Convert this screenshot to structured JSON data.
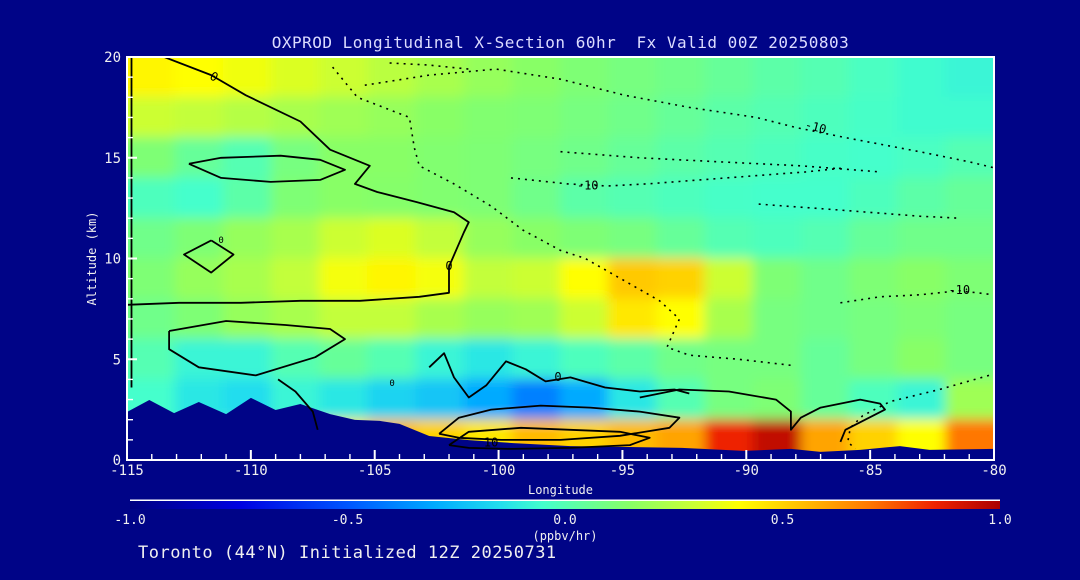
{
  "title": "OXPROD Longitudinal X-Section 60hr  Fx Valid 00Z 20250803",
  "footer": {
    "text": "Toronto (44°N) Initialized 12Z 20250731"
  },
  "colors": {
    "background": "#000487",
    "frame": "#ffffff",
    "tick_text": "#f0f0f0",
    "title_text": "#dcdcff",
    "contour": "#000000",
    "terrain": "#000487"
  },
  "chart_data": {
    "type": "heatmap",
    "title": "OXPROD Longitudinal X-Section 60hr  Fx Valid 00Z 20250803",
    "xlabel": "Longitude",
    "ylabel": "Altitude (km)",
    "xlim": [
      -115,
      -80
    ],
    "ylim": [
      0,
      20
    ],
    "xticks": [
      -115,
      -110,
      -105,
      -100,
      -95,
      -90,
      -85,
      -80
    ],
    "yticks": [
      0,
      5,
      10,
      15,
      20
    ],
    "x_minor_step": 1,
    "y_minor_step": 1,
    "colorbar": {
      "unit_label": "(ppbv/hr)",
      "ticks": [
        -1.0,
        -0.5,
        0.0,
        0.5,
        1.0
      ],
      "min": -1.0,
      "max": 1.0
    },
    "colormap": {
      "levels": [
        -1,
        -0.75,
        -0.5,
        -0.3,
        -0.15,
        -0.05,
        0.05,
        0.15,
        0.3,
        0.4,
        0.55,
        0.7,
        0.85,
        1
      ],
      "colors": [
        "#000080",
        "#0000e0",
        "#0055ff",
        "#00aaff",
        "#22ddee",
        "#44ffcc",
        "#66ff99",
        "#88ff66",
        "#ccff33",
        "#ffff00",
        "#ffbb00",
        "#ff7700",
        "#ee2200",
        "#aa0000"
      ]
    },
    "grid": {
      "lon_min": -115,
      "lon_max": -80,
      "alt_min": 0,
      "alt_max": 20,
      "ncols": 18,
      "nrows": 10,
      "note": "rows ordered top (20km) to bottom (0km); values in ppbv/hr",
      "values": [
        [
          0.42,
          0.4,
          0.37,
          0.33,
          0.3,
          0.26,
          0.22,
          0.18,
          0.15,
          0.12,
          0.1,
          0.08,
          0.05,
          0.02,
          0.0,
          -0.03,
          -0.06,
          -0.08
        ],
        [
          0.3,
          0.28,
          0.25,
          0.22,
          0.2,
          0.18,
          0.15,
          0.13,
          0.12,
          0.1,
          0.08,
          0.05,
          0.02,
          0.0,
          -0.02,
          -0.04,
          -0.06,
          -0.06
        ],
        [
          0.12,
          0.05,
          0.0,
          0.1,
          0.15,
          0.15,
          0.13,
          0.12,
          0.1,
          0.08,
          0.05,
          0.02,
          0.0,
          -0.02,
          -0.04,
          -0.05,
          -0.03,
          0.0
        ],
        [
          -0.02,
          -0.05,
          0.02,
          0.12,
          0.15,
          0.14,
          0.13,
          0.12,
          0.08,
          0.02,
          0.0,
          -0.02,
          -0.04,
          -0.05,
          -0.05,
          -0.02,
          0.02,
          0.05
        ],
        [
          0.08,
          0.12,
          0.18,
          0.22,
          0.3,
          0.33,
          0.28,
          0.18,
          0.15,
          0.12,
          0.1,
          0.05,
          0.0,
          -0.02,
          0.0,
          0.05,
          0.08,
          0.08
        ],
        [
          0.12,
          0.18,
          0.22,
          0.28,
          0.38,
          0.42,
          0.38,
          0.28,
          0.3,
          0.4,
          0.52,
          0.5,
          0.3,
          0.12,
          0.08,
          0.12,
          0.15,
          0.12
        ],
        [
          0.08,
          0.12,
          0.18,
          0.22,
          0.28,
          0.28,
          0.22,
          0.18,
          0.2,
          0.3,
          0.45,
          0.4,
          0.22,
          0.1,
          0.08,
          0.1,
          0.12,
          0.1
        ],
        [
          0.0,
          -0.08,
          -0.08,
          0.0,
          0.05,
          0.0,
          -0.08,
          -0.12,
          -0.08,
          -0.02,
          0.02,
          0.08,
          0.1,
          0.1,
          0.05,
          0.1,
          0.15,
          0.1
        ],
        [
          -0.05,
          -0.12,
          -0.15,
          -0.08,
          -0.12,
          -0.18,
          -0.22,
          -0.3,
          -0.4,
          -0.3,
          -0.12,
          0.0,
          0.1,
          0.12,
          0.05,
          -0.02,
          -0.08,
          0.2
        ],
        [
          0.0,
          -0.05,
          0.05,
          0.15,
          0.45,
          0.55,
          0.5,
          0.45,
          0.55,
          0.5,
          0.55,
          0.6,
          0.85,
          0.95,
          0.6,
          0.5,
          0.4,
          0.7
        ]
      ]
    },
    "terrain_profile": [
      [
        -115,
        2.38
      ],
      [
        -114.1,
        2.98
      ],
      [
        -113.1,
        2.33
      ],
      [
        -112.1,
        2.88
      ],
      [
        -111.0,
        2.28
      ],
      [
        -110.0,
        3.08
      ],
      [
        -109.0,
        2.48
      ],
      [
        -108.0,
        2.78
      ],
      [
        -106.8,
        2.28
      ],
      [
        -105.8,
        1.99
      ],
      [
        -104.8,
        1.94
      ],
      [
        -104.0,
        1.79
      ],
      [
        -102.8,
        1.19
      ],
      [
        -101.2,
        0.99
      ],
      [
        -99.4,
        0.84
      ],
      [
        -97.1,
        0.69
      ],
      [
        -95.1,
        0.65
      ],
      [
        -92.6,
        0.6
      ],
      [
        -90.1,
        0.45
      ],
      [
        -88.2,
        0.55
      ],
      [
        -87.0,
        0.4
      ],
      [
        -85.4,
        0.5
      ],
      [
        -83.8,
        0.69
      ],
      [
        -82.6,
        0.5
      ],
      [
        -80,
        0.55
      ]
    ],
    "contours": {
      "solid": [
        [
          [
            -113.5,
            20
          ],
          [
            -111.6,
            19.1
          ],
          [
            -110.2,
            18.1
          ],
          [
            -108,
            16.8
          ],
          [
            -106.8,
            15.4
          ],
          [
            -105.2,
            14.6
          ],
          [
            -105.8,
            13.7
          ],
          [
            -104.9,
            13.3
          ],
          [
            -103.3,
            12.8
          ],
          [
            -101.8,
            12.3
          ],
          [
            -101.2,
            11.8
          ],
          [
            -101.4,
            11.3
          ],
          [
            -102,
            9.6
          ],
          [
            -102,
            8.3
          ],
          [
            -103.2,
            8.1
          ],
          [
            -105.6,
            7.9
          ],
          [
            -108,
            7.9
          ],
          [
            -110.4,
            7.8
          ],
          [
            -112.9,
            7.8
          ],
          [
            -115,
            7.7
          ]
        ],
        [
          [
            -114.82,
            20
          ],
          [
            -114.82,
            3.6
          ]
        ],
        [
          [
            -112.5,
            14.7
          ],
          [
            -111.2,
            15
          ],
          [
            -108.8,
            15.1
          ],
          [
            -107.2,
            14.9
          ],
          [
            -106.2,
            14.4
          ],
          [
            -107.2,
            13.9
          ],
          [
            -109.2,
            13.8
          ],
          [
            -111.2,
            14
          ],
          [
            -112.5,
            14.7
          ]
        ],
        [
          [
            -111.6,
            10.9
          ],
          [
            -110.7,
            10.2
          ],
          [
            -111.6,
            9.3
          ],
          [
            -112.7,
            10.2
          ],
          [
            -111.6,
            10.9
          ]
        ],
        [
          [
            -113.3,
            6.4
          ],
          [
            -111,
            6.9
          ],
          [
            -108.6,
            6.7
          ],
          [
            -106.8,
            6.5
          ],
          [
            -106.2,
            6
          ],
          [
            -107.4,
            5.1
          ],
          [
            -109.8,
            4.2
          ],
          [
            -112.1,
            4.6
          ],
          [
            -113.3,
            5.5
          ],
          [
            -113.3,
            6.4
          ]
        ],
        [
          [
            -108.9,
            4
          ],
          [
            -108.2,
            3.4
          ],
          [
            -107.5,
            2.4
          ],
          [
            -107.3,
            1.5
          ]
        ],
        [
          [
            -102.8,
            4.6
          ],
          [
            -102.2,
            5.3
          ],
          [
            -101.8,
            4.1
          ],
          [
            -101.2,
            3.1
          ],
          [
            -100.5,
            3.7
          ],
          [
            -99.7,
            4.9
          ],
          [
            -98.9,
            4.5
          ],
          [
            -98.1,
            3.9
          ],
          [
            -97.1,
            4.1
          ],
          [
            -95.7,
            3.6
          ],
          [
            -94.3,
            3.4
          ],
          [
            -92.9,
            3.5
          ],
          [
            -92.3,
            3.3
          ]
        ],
        [
          [
            -102.4,
            1.3
          ],
          [
            -101.6,
            2.1
          ],
          [
            -100.3,
            2.5
          ],
          [
            -98.3,
            2.7
          ],
          [
            -96.3,
            2.6
          ],
          [
            -94.3,
            2.4
          ],
          [
            -92.7,
            2.1
          ],
          [
            -93.1,
            1.6
          ],
          [
            -95.1,
            1.2
          ],
          [
            -97.5,
            1
          ],
          [
            -99.9,
            1
          ],
          [
            -101.6,
            1.1
          ],
          [
            -102.4,
            1.3
          ]
        ],
        [
          [
            -102,
            0.74
          ],
          [
            -101.2,
            1.4
          ],
          [
            -99.1,
            1.6
          ],
          [
            -97.1,
            1.5
          ],
          [
            -95.1,
            1.4
          ],
          [
            -93.9,
            1.1
          ],
          [
            -94.7,
            0.74
          ],
          [
            -97.1,
            0.6
          ],
          [
            -99.5,
            0.55
          ],
          [
            -101.2,
            0.6
          ],
          [
            -102,
            0.74
          ]
        ],
        [
          [
            -94.3,
            3.1
          ],
          [
            -92.7,
            3.5
          ],
          [
            -90.7,
            3.4
          ],
          [
            -88.8,
            3
          ],
          [
            -88.2,
            2.4
          ],
          [
            -88.2,
            1.5
          ],
          [
            -87.8,
            2.1
          ],
          [
            -87,
            2.6
          ],
          [
            -85.4,
            3
          ],
          [
            -84.6,
            2.8
          ],
          [
            -84.4,
            2.5
          ],
          [
            -85.2,
            2
          ],
          [
            -86,
            1.5
          ],
          [
            -86.2,
            0.9
          ]
        ]
      ],
      "dotted": [
        [
          [
            -106.7,
            19.5
          ],
          [
            -105.7,
            18
          ],
          [
            -103.6,
            17
          ],
          [
            -103.4,
            15.5
          ],
          [
            -103.2,
            14.6
          ],
          [
            -101.8,
            13.7
          ],
          [
            -100.3,
            12.6
          ],
          [
            -99,
            11.4
          ],
          [
            -97.5,
            10.4
          ],
          [
            -96.5,
            10
          ],
          [
            -93.5,
            7.9
          ],
          [
            -92.7,
            7
          ],
          [
            -93.2,
            5.6
          ],
          [
            -92.3,
            5.2
          ],
          [
            -90.3,
            5
          ],
          [
            -88.2,
            4.7
          ]
        ],
        [
          [
            -105.4,
            18.6
          ],
          [
            -102.8,
            19.1
          ],
          [
            -100.1,
            19.4
          ],
          [
            -97.5,
            18.9
          ],
          [
            -94.9,
            18.1
          ],
          [
            -92.3,
            17.5
          ],
          [
            -89.6,
            17
          ],
          [
            -88,
            16.5
          ],
          [
            -86,
            16
          ],
          [
            -83,
            15.3
          ],
          [
            -81,
            14.8
          ],
          [
            -80,
            14.5
          ]
        ],
        [
          [
            -97.5,
            15.3
          ],
          [
            -94.3,
            15
          ],
          [
            -91.1,
            14.8
          ],
          [
            -87.8,
            14.6
          ],
          [
            -84.6,
            14.3
          ]
        ],
        [
          [
            -99.5,
            14
          ],
          [
            -97.2,
            13.7
          ],
          [
            -95.6,
            13.6
          ],
          [
            -94,
            13.7
          ],
          [
            -90.8,
            14
          ],
          [
            -87.6,
            14.3
          ],
          [
            -86,
            14.5
          ]
        ],
        [
          [
            -86.2,
            7.8
          ],
          [
            -84.6,
            8.1
          ],
          [
            -83,
            8.2
          ],
          [
            -81.4,
            8.4
          ],
          [
            -80,
            8.2
          ]
        ],
        [
          [
            -80.2,
            4.2
          ],
          [
            -82.2,
            3.5
          ],
          [
            -84.2,
            2.9
          ],
          [
            -85.3,
            2.2
          ],
          [
            -85.8,
            1.6
          ],
          [
            -85.9,
            0.9
          ],
          [
            -85.6,
            0.55
          ]
        ],
        [
          [
            -104.4,
            19.7
          ],
          [
            -102.8,
            19.6
          ],
          [
            -101.2,
            19.4
          ]
        ],
        [
          [
            -89.5,
            12.7
          ],
          [
            -86.2,
            12.4
          ],
          [
            -83,
            12.1
          ],
          [
            -81.4,
            12
          ]
        ]
      ],
      "labels": [
        {
          "text": "0",
          "lon": -111.5,
          "alt": 19.0,
          "rot": 30
        },
        {
          "text": "0",
          "lon": -111.2,
          "alt": 10.9,
          "size": 9
        },
        {
          "text": "0",
          "lon": -102.0,
          "alt": 9.6
        },
        {
          "text": "0",
          "lon": -104.3,
          "alt": 3.8,
          "size": 9
        },
        {
          "text": "0",
          "lon": -97.6,
          "alt": 4.1
        },
        {
          "text": "10",
          "lon": -100.3,
          "alt": 0.85
        },
        {
          "text": "-10",
          "lon": -87.2,
          "alt": 16.5,
          "rot": 15
        },
        {
          "text": "-10",
          "lon": -96.4,
          "alt": 13.6
        },
        {
          "text": "-10",
          "lon": -81.4,
          "alt": 8.4
        }
      ]
    }
  }
}
